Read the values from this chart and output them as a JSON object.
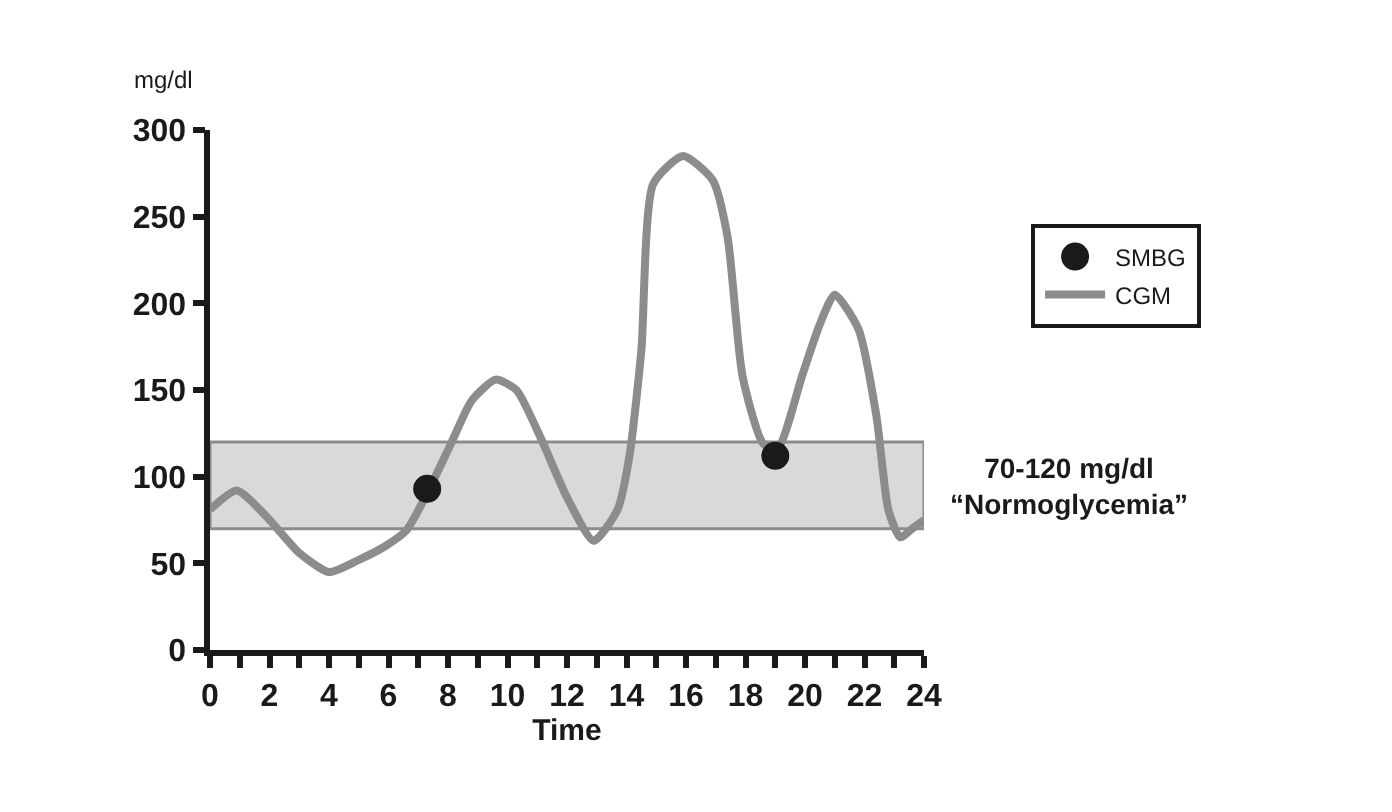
{
  "chart_data": {
    "type": "line",
    "xlabel": "Time",
    "ylabel": "mg/dl",
    "xlim": [
      0,
      24
    ],
    "ylim": [
      0,
      300
    ],
    "xticks": [
      0,
      {
        "value": 1,
        "label": null
      },
      2,
      {
        "value": 3,
        "label": null
      },
      4,
      {
        "value": 5,
        "label": null
      },
      6,
      {
        "value": 7,
        "label": null
      },
      8,
      {
        "value": 9,
        "label": null
      },
      10,
      {
        "value": 11,
        "label": null
      },
      12,
      {
        "value": 13,
        "label": null
      },
      14,
      {
        "value": 15,
        "label": null
      },
      16,
      {
        "value": 17,
        "label": null
      },
      18,
      {
        "value": 19,
        "label": null
      },
      20,
      {
        "value": 21,
        "label": null
      },
      22,
      {
        "value": 23,
        "label": null
      },
      24
    ],
    "yticks": [
      0,
      50,
      100,
      150,
      200,
      250,
      300
    ],
    "series": [
      {
        "name": "SMBG",
        "type": "scatter",
        "marker": "circle",
        "color": "#1a1a1a",
        "x": [
          7.3,
          19.0
        ],
        "values": [
          93,
          112
        ]
      },
      {
        "name": "CGM",
        "marker": "none",
        "color": "#8c8c8c",
        "x": [
          0,
          0.9,
          1.9,
          3.0,
          4.0,
          5.0,
          5.9,
          6.6,
          7.2,
          8.1,
          8.8,
          9.6,
          10.3,
          11.1,
          12.0,
          12.9,
          13.7,
          14.1,
          14.5,
          14.9,
          15.9,
          16.9,
          17.4,
          17.9,
          18.6,
          19.1,
          19.9,
          20.5,
          21.0,
          21.8,
          22.4,
          22.8,
          23.2,
          23.6,
          24
        ],
        "values": [
          81,
          92,
          77,
          56,
          45,
          52,
          60,
          69,
          87,
          119,
          144,
          156,
          150,
          123,
          88,
          63,
          81,
          112,
          173,
          269,
          285,
          271,
          238,
          158,
          119,
          117,
          158,
          188,
          205,
          185,
          135,
          81,
          65,
          70,
          75
        ]
      }
    ],
    "bands": [
      {
        "axis": "y",
        "from": 70,
        "to": 120,
        "label": "70-120 mg/dl\n“Normoglycemia”",
        "color": "#d9d9db"
      }
    ],
    "grid": false,
    "legend": "right"
  }
}
